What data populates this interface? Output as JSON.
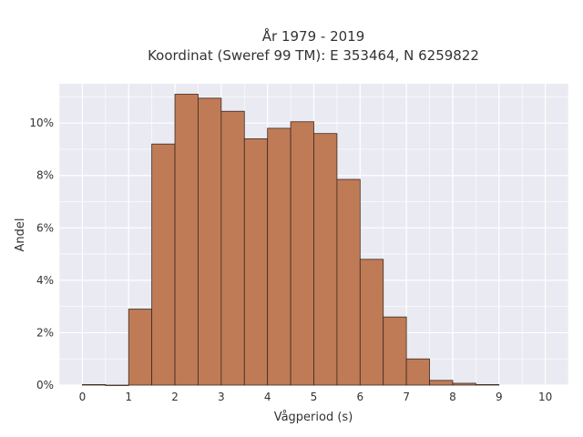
{
  "chart_data": {
    "type": "bar",
    "title_line1": "År 1979 - 2019",
    "title_line2": "Koordinat (Sweref 99 TM): E 353464, N 6259822",
    "xlabel": "Vågperiod (s)",
    "ylabel": "Andel",
    "xlim": [
      -0.5,
      10.5
    ],
    "ylim": [
      0,
      0.115
    ],
    "x_ticks": [
      0,
      1,
      2,
      3,
      4,
      5,
      6,
      7,
      8,
      9,
      10
    ],
    "y_ticks": [
      0,
      0.02,
      0.04,
      0.06,
      0.08,
      0.1
    ],
    "y_tick_labels": [
      "0%",
      "2%",
      "4%",
      "6%",
      "8%",
      "10%"
    ],
    "bin_width": 0.5,
    "bins": [
      {
        "x0": 0.0,
        "x1": 0.5,
        "value": 0.0002
      },
      {
        "x0": 0.5,
        "x1": 1.0,
        "value": 0.0
      },
      {
        "x0": 1.0,
        "x1": 1.5,
        "value": 0.029
      },
      {
        "x0": 1.5,
        "x1": 2.0,
        "value": 0.092
      },
      {
        "x0": 2.0,
        "x1": 2.5,
        "value": 0.111
      },
      {
        "x0": 2.5,
        "x1": 3.0,
        "value": 0.1095
      },
      {
        "x0": 3.0,
        "x1": 3.5,
        "value": 0.1045
      },
      {
        "x0": 3.5,
        "x1": 4.0,
        "value": 0.094
      },
      {
        "x0": 4.0,
        "x1": 4.5,
        "value": 0.098
      },
      {
        "x0": 4.5,
        "x1": 5.0,
        "value": 0.1005
      },
      {
        "x0": 5.0,
        "x1": 5.5,
        "value": 0.096
      },
      {
        "x0": 5.5,
        "x1": 6.0,
        "value": 0.0785
      },
      {
        "x0": 6.0,
        "x1": 6.5,
        "value": 0.048
      },
      {
        "x0": 6.5,
        "x1": 7.0,
        "value": 0.026
      },
      {
        "x0": 7.0,
        "x1": 7.5,
        "value": 0.01
      },
      {
        "x0": 7.5,
        "x1": 8.0,
        "value": 0.0018
      },
      {
        "x0": 8.0,
        "x1": 8.5,
        "value": 0.0007
      },
      {
        "x0": 8.5,
        "x1": 9.0,
        "value": 0.0002
      }
    ],
    "grid": true,
    "bar_color": "#bf7b56",
    "bar_edge_color": "#3b2a20",
    "plot_bg": "#eaeaf2",
    "grid_color": "#ffffff"
  }
}
